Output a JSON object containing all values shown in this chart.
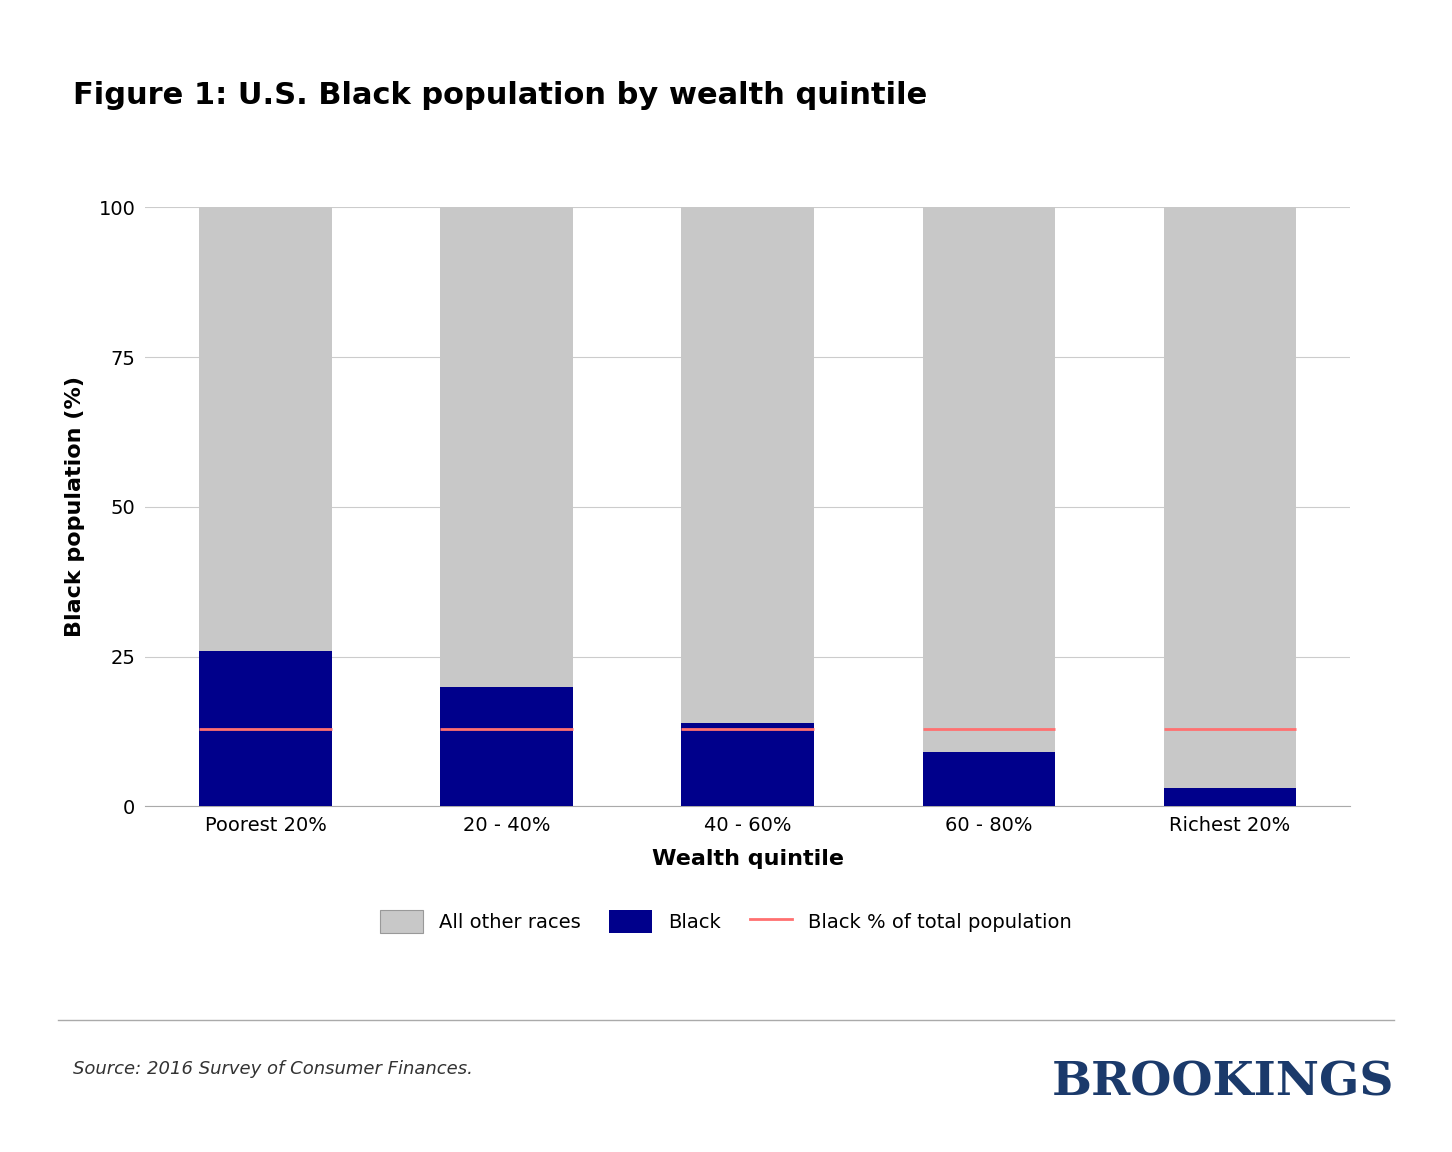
{
  "title": "Figure 1: U.S. Black population by wealth quintile",
  "categories": [
    "Poorest 20%",
    "20 - 40%",
    "40 - 60%",
    "60 - 80%",
    "Richest 20%"
  ],
  "black_values": [
    26,
    20,
    14,
    9,
    3
  ],
  "other_values": [
    74,
    80,
    86,
    91,
    97
  ],
  "black_pct_total": 13,
  "ylabel": "Black population (%)",
  "xlabel": "Wealth quintile",
  "ylim": [
    0,
    100
  ],
  "yticks": [
    0,
    25,
    50,
    75,
    100
  ],
  "black_color": "#00008B",
  "other_color": "#C8C8C8",
  "line_color": "#FF7070",
  "title_fontsize": 22,
  "axis_label_fontsize": 16,
  "tick_fontsize": 14,
  "legend_fontsize": 14,
  "source_text": "Source: 2016 Survey of Consumer Finances.",
  "brookings_text": "BROOKINGS",
  "brookings_color": "#1B3A6B",
  "background_color": "#FFFFFF",
  "bar_width": 0.55,
  "grid_color": "#CCCCCC"
}
